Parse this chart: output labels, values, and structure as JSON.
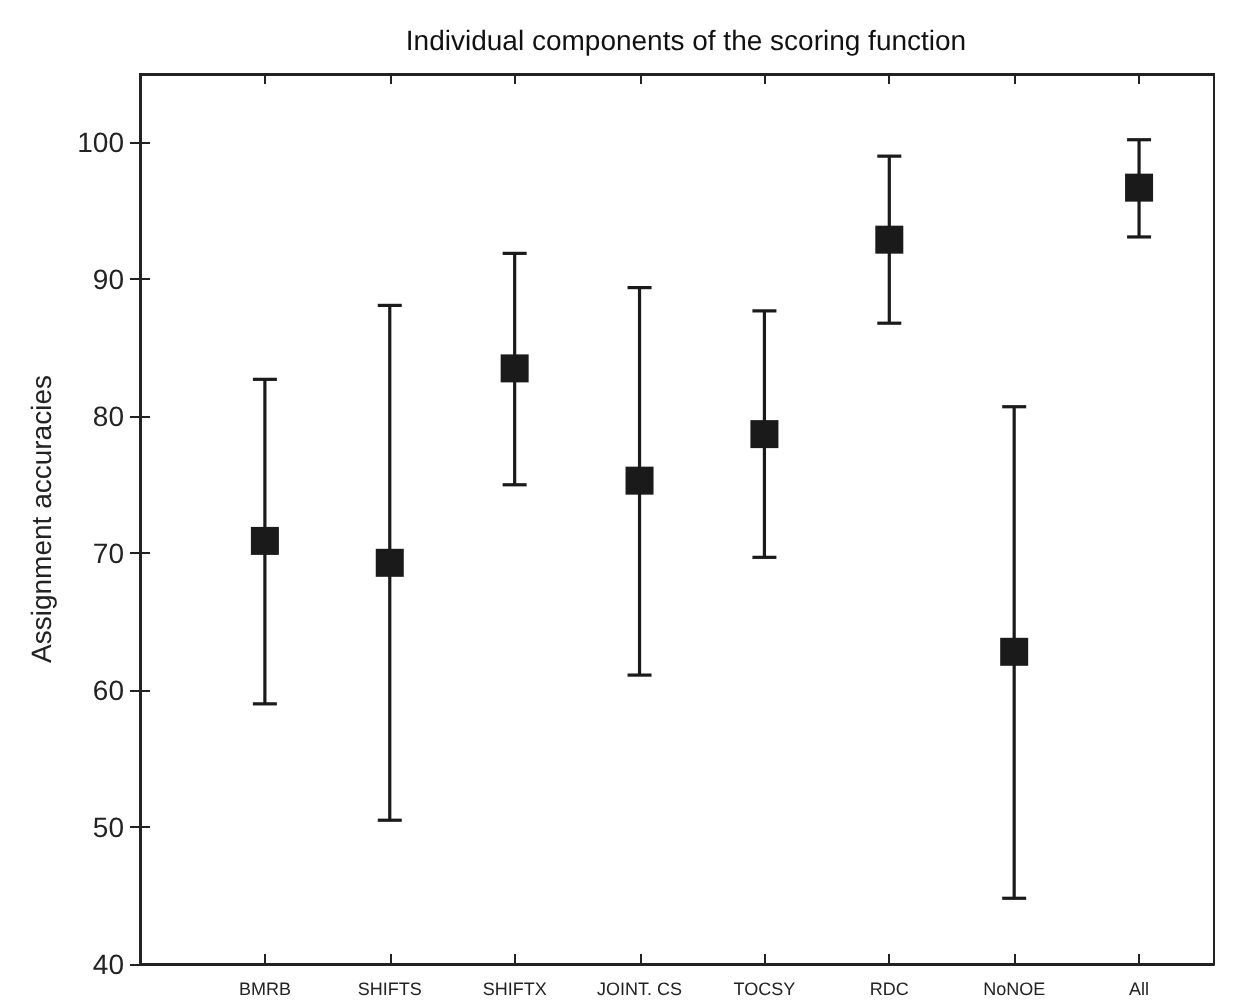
{
  "chart_data": {
    "type": "scatter",
    "title": "Individual components of the scoring function",
    "ylabel": "Assignment accuracies",
    "categories": [
      "BMRB",
      "SHIFTS",
      "SHIFTX",
      "JOINT. CS",
      "TOCSY",
      "RDC",
      "NoNOE",
      "All"
    ],
    "values": [
      70.9,
      69.3,
      83.5,
      75.3,
      78.7,
      92.9,
      62.8,
      96.7
    ],
    "errors": [
      [
        59.0,
        82.7
      ],
      [
        50.5,
        88.1
      ],
      [
        75.0,
        91.9
      ],
      [
        61.1,
        89.4
      ],
      [
        69.7,
        87.7
      ],
      [
        86.8,
        99.0
      ],
      [
        44.8,
        80.7
      ],
      [
        93.1,
        100.2
      ]
    ],
    "color": "#1a1a1a",
    "marker": "square",
    "ylim": [
      40,
      105
    ],
    "yticks": [
      40,
      50,
      60,
      70,
      80,
      90,
      100
    ],
    "grid": false
  }
}
